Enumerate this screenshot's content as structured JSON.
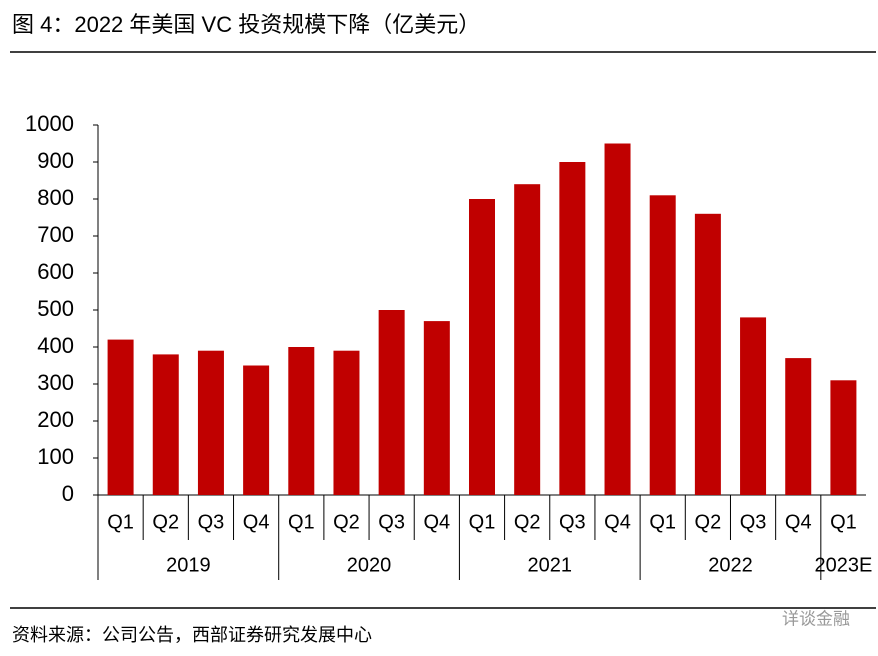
{
  "title": "图 4：2022 年美国 VC 投资规模下降（亿美元）",
  "chart_data": {
    "type": "bar",
    "groups": [
      {
        "name": "2019",
        "categories": [
          "Q1",
          "Q2",
          "Q3",
          "Q4"
        ]
      },
      {
        "name": "2020",
        "categories": [
          "Q1",
          "Q2",
          "Q3",
          "Q4"
        ]
      },
      {
        "name": "2021",
        "categories": [
          "Q1",
          "Q2",
          "Q3",
          "Q4"
        ]
      },
      {
        "name": "2022",
        "categories": [
          "Q1",
          "Q2",
          "Q3",
          "Q4"
        ]
      },
      {
        "name": "2023E",
        "categories": [
          "Q1"
        ]
      }
    ],
    "values": [
      420,
      380,
      390,
      350,
      400,
      390,
      500,
      470,
      800,
      840,
      900,
      950,
      810,
      760,
      480,
      370,
      310
    ],
    "color": "#c00000",
    "ylim": [
      0,
      1000
    ],
    "yticks": [
      0,
      100,
      200,
      300,
      400,
      500,
      600,
      700,
      800,
      900,
      1000
    ]
  },
  "source": "资料来源：公司公告，西部证券研究发展中心",
  "watermark": "详谈金融"
}
